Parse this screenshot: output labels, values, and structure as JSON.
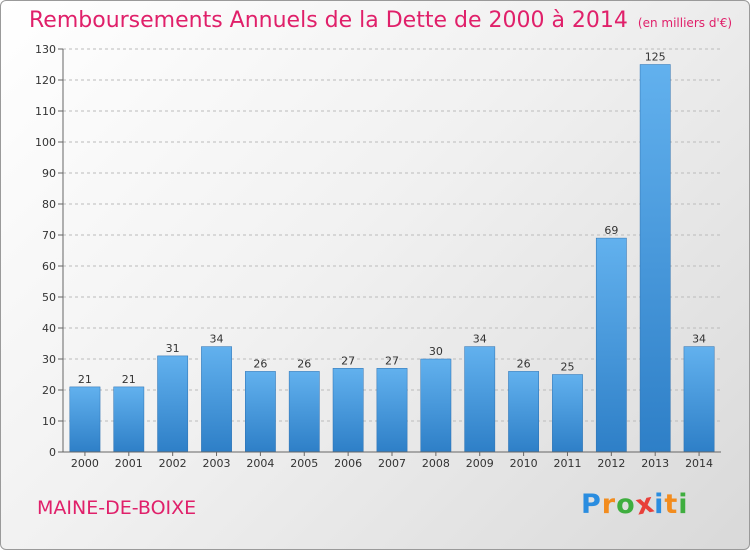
{
  "chart_data": {
    "type": "bar",
    "title": "Remboursements Annuels de la Dette de 2000 à 2014",
    "subtitle": "(en milliers d'€)",
    "categories": [
      "2000",
      "2001",
      "2002",
      "2003",
      "2004",
      "2005",
      "2006",
      "2007",
      "2008",
      "2009",
      "2010",
      "2011",
      "2012",
      "2013",
      "2014"
    ],
    "values": [
      21,
      21,
      31,
      34,
      26,
      26,
      27,
      27,
      30,
      34,
      26,
      25,
      69,
      125,
      34
    ],
    "ylim": [
      0,
      130
    ],
    "yticks": [
      0,
      10,
      20,
      30,
      40,
      50,
      60,
      70,
      80,
      90,
      100,
      110,
      120,
      130
    ],
    "xlabel": "",
    "ylabel": "",
    "grid": true,
    "bar_color": "#3d8fd6",
    "grid_color": "#bbbbbb"
  },
  "footer": {
    "commune": "MAINE-DE-BOIXE",
    "logo_letters": [
      "P",
      "r",
      "o",
      "x",
      "i",
      "t",
      "i"
    ],
    "logo_colors": [
      "#2a8de0",
      "#f28c1e",
      "#3fae3f",
      "#e8403a",
      "#2a8de0",
      "#f28c1e",
      "#3fae3f"
    ]
  },
  "colors": {
    "title": "#e0206a",
    "commune": "#e0206a"
  }
}
